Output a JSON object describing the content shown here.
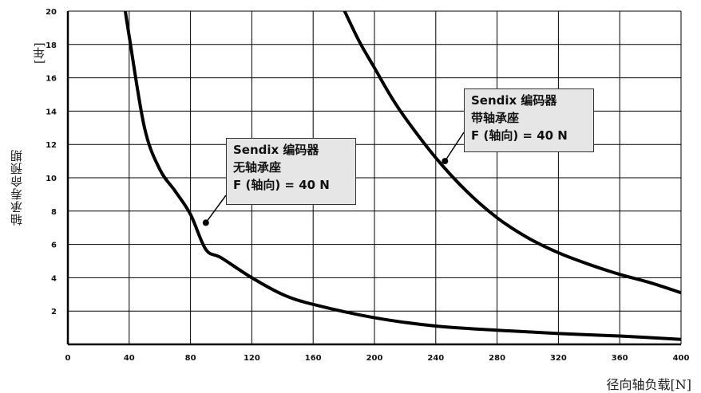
{
  "chart_data": {
    "type": "line",
    "xlabel": "径向轴负载[N]",
    "ylabel": "轴承寿命预期",
    "yunit": "[年]",
    "xlim": [
      0,
      400
    ],
    "ylim": [
      0,
      20
    ],
    "x_ticks": [
      "0",
      "40",
      "80",
      "120",
      "160",
      "200",
      "240",
      "280",
      "320",
      "360",
      "400"
    ],
    "y_ticks": [
      "2",
      "4",
      "6",
      "8",
      "10",
      "12",
      "14",
      "16",
      "18",
      "20"
    ],
    "grid": true,
    "series": [
      {
        "name": "Sendix 编码器 无轴承座",
        "x": [
          37,
          40,
          50,
          60,
          70,
          80,
          90,
          100,
          120,
          140,
          160,
          200,
          240,
          280,
          320,
          360,
          400
        ],
        "y": [
          20.3,
          18.5,
          13.0,
          10.5,
          9.2,
          7.8,
          5.7,
          5.2,
          4.0,
          3.0,
          2.4,
          1.6,
          1.1,
          0.85,
          0.65,
          0.5,
          0.3
        ]
      },
      {
        "name": "Sendix 编码器 带轴承座",
        "x": [
          179,
          190,
          200,
          210,
          220,
          240,
          260,
          280,
          300,
          320,
          340,
          360,
          380,
          400
        ],
        "y": [
          20.3,
          18.2,
          16.6,
          15.0,
          13.6,
          11.2,
          9.2,
          7.6,
          6.4,
          5.5,
          4.8,
          4.2,
          3.7,
          3.1
        ]
      }
    ],
    "annotations": [
      {
        "lines": [
          "Sendix 编码器",
          "无轴承座",
          "F (轴向) = 40 N"
        ],
        "point": {
          "x": 90,
          "y": 7.3
        }
      },
      {
        "lines": [
          "Sendix 编码器",
          "带轴承座",
          "F (轴向) = 40 N"
        ],
        "point": {
          "x": 246,
          "y": 11.0
        }
      }
    ]
  }
}
